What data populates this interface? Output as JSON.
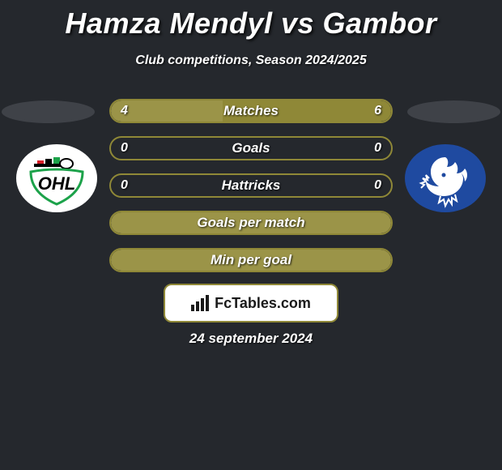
{
  "title": "Hamza Mendyl vs Gambor",
  "subtitle": "Club competitions, Season 2024/2025",
  "date": "24 september 2024",
  "brand": "FcTables.com",
  "colors": {
    "bg": "#25282d",
    "bar_border": "#8f8837",
    "fill_left": "#9b9448",
    "fill_right": "#8f8837",
    "oval": "#3f4248",
    "text": "#ffffff",
    "logo_border": "#8f8837",
    "club_right_primary": "#1f4aa0"
  },
  "bars": [
    {
      "label": "Matches",
      "left_val": "4",
      "right_val": "6",
      "left_pct": 40,
      "right_pct": 60
    },
    {
      "label": "Goals",
      "left_val": "0",
      "right_val": "0",
      "left_pct": 0,
      "right_pct": 0
    },
    {
      "label": "Hattricks",
      "left_val": "0",
      "right_val": "0",
      "left_pct": 0,
      "right_pct": 0
    },
    {
      "label": "Goals per match",
      "left_val": "",
      "right_val": "",
      "left_pct": 100,
      "right_pct": 0
    },
    {
      "label": "Min per goal",
      "left_val": "",
      "right_val": "",
      "left_pct": 100,
      "right_pct": 0
    }
  ],
  "clubs": {
    "left": {
      "name": "OHL",
      "colors": [
        "#d81e29",
        "#000000",
        "#1ca24a"
      ]
    },
    "right": {
      "name": "Gent",
      "colors": [
        "#1f4aa0",
        "#ffffff"
      ]
    }
  }
}
